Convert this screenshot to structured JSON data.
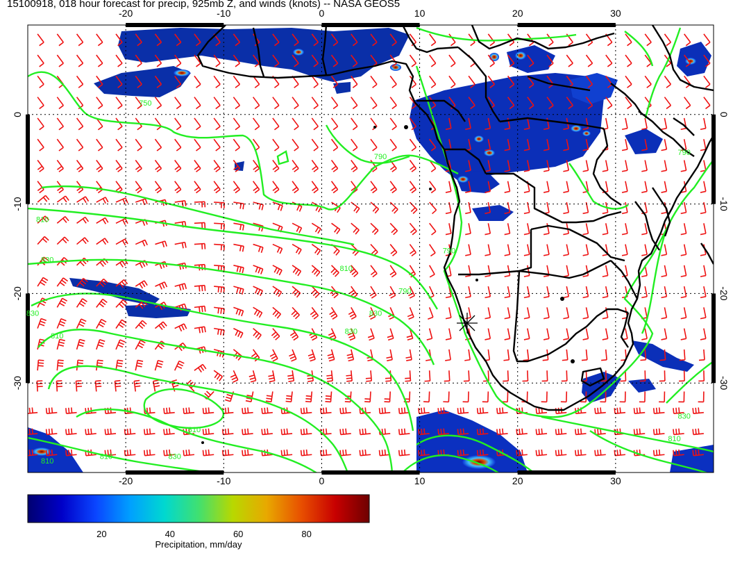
{
  "title": "15100918, 018 hour forecast for precip, 925mb Z, and winds (knots) -- NASA GEOS5",
  "map": {
    "lon_range": [
      -30,
      40
    ],
    "lat_range": [
      -40,
      10
    ],
    "lon_ticks": [
      "-20",
      "-10",
      "0",
      "10",
      "20",
      "30"
    ],
    "lat_ticks": [
      "0",
      "-10",
      "-20",
      "-30"
    ],
    "contour_color": "#22ee22",
    "wind_barb_color": "#ee1111",
    "coast_color": "#000000",
    "contour_labels": [
      {
        "text": "750",
        "lon": -18,
        "lat": 1
      },
      {
        "text": "810",
        "lon": -28.5,
        "lat": -12
      },
      {
        "text": "830",
        "lon": -28,
        "lat": -16.5
      },
      {
        "text": "830",
        "lon": -29.5,
        "lat": -22.5
      },
      {
        "text": "810",
        "lon": -27,
        "lat": -25
      },
      {
        "text": "810",
        "lon": -13,
        "lat": -35.5
      },
      {
        "text": "810",
        "lon": 2.5,
        "lat": -17.5
      },
      {
        "text": "830",
        "lon": 5.5,
        "lat": -22.5
      },
      {
        "text": "790",
        "lon": 8.5,
        "lat": -20
      },
      {
        "text": "830",
        "lon": 3,
        "lat": -24.5
      },
      {
        "text": "790",
        "lon": 6,
        "lat": -5
      },
      {
        "text": "790",
        "lon": 13,
        "lat": -15.5
      },
      {
        "text": "830",
        "lon": 37,
        "lat": -34
      },
      {
        "text": "810",
        "lon": 36,
        "lat": -36.5
      },
      {
        "text": "790",
        "lon": 37,
        "lat": -4.5
      },
      {
        "text": "810",
        "lon": -22,
        "lat": -38.5
      },
      {
        "text": "830",
        "lon": -15,
        "lat": -38.5
      },
      {
        "text": "810",
        "lon": -28,
        "lat": -39
      }
    ]
  },
  "colorbar": {
    "ticks": [
      "20",
      "40",
      "60",
      "80"
    ],
    "label": "Precipitation, mm/day",
    "colors": [
      "#000070",
      "#0000c8",
      "#0a46ff",
      "#00a0ff",
      "#00d8d0",
      "#40e070",
      "#b8d800",
      "#e8a800",
      "#e85000",
      "#c80000",
      "#6e0000"
    ]
  }
}
